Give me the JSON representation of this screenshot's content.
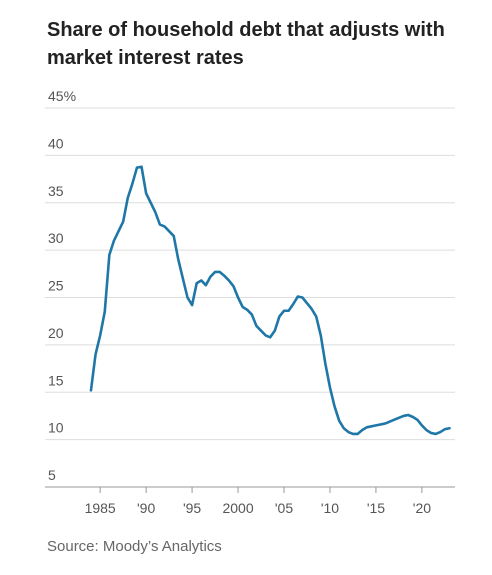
{
  "chart_data": {
    "type": "line",
    "title": "Share of household debt that adjusts with market interest rates",
    "source": "Source: Moody’s Analytics",
    "x": [
      1984,
      1984.5,
      1985,
      1985.5,
      1986,
      1986.5,
      1987,
      1987.5,
      1988,
      1988.5,
      1989,
      1989.5,
      1990,
      1990.5,
      1991,
      1991.5,
      1992,
      1992.5,
      1993,
      1993.5,
      1994,
      1994.5,
      1995,
      1995.5,
      1996,
      1996.5,
      1997,
      1997.5,
      1998,
      1998.5,
      1999,
      1999.5,
      2000,
      2000.5,
      2001,
      2001.5,
      2002,
      2002.5,
      2003,
      2003.5,
      2004,
      2004.5,
      2005,
      2005.5,
      2006,
      2006.5,
      2007,
      2007.5,
      2008,
      2008.5,
      2009,
      2009.5,
      2010,
      2010.5,
      2011,
      2011.5,
      2012,
      2012.5,
      2013,
      2013.5,
      2014,
      2015,
      2016,
      2017,
      2018,
      2018.5,
      2019,
      2019.5,
      2020,
      2020.5,
      2021,
      2021.5,
      2022,
      2022.5,
      2023
    ],
    "series": [
      {
        "name": "Share of household debt",
        "color": "#1f77a8",
        "values": [
          15.2,
          19,
          21,
          23.5,
          29.5,
          31,
          32,
          33,
          35.5,
          37,
          38.7,
          38.8,
          36,
          35,
          34,
          32.7,
          32.5,
          32,
          31.5,
          29,
          27,
          25,
          24.2,
          26.5,
          26.8,
          26.3,
          27.2,
          27.7,
          27.7,
          27.3,
          26.8,
          26.2,
          25,
          24,
          23.7,
          23.2,
          22,
          21.5,
          21,
          20.8,
          21.5,
          23,
          23.6,
          23.6,
          24.3,
          25.1,
          25,
          24.4,
          23.8,
          23,
          21,
          18,
          15.5,
          13.5,
          12,
          11.2,
          10.8,
          10.6,
          10.6,
          11,
          11.3,
          11.5,
          11.7,
          12.1,
          12.5,
          12.6,
          12.4,
          12.1,
          11.5,
          11,
          10.7,
          10.6,
          10.8,
          11.1,
          11.2
        ]
      }
    ],
    "xlim": [
      1979,
      2023.6
    ],
    "xticks": [
      1985,
      {
        "value": 1990,
        "label": "'90"
      },
      {
        "value": 1995,
        "label": "'95"
      },
      2000,
      {
        "value": 2005,
        "label": "'05"
      },
      {
        "value": 2010,
        "label": "'10"
      },
      {
        "value": 2015,
        "label": "'15"
      },
      {
        "value": 2020,
        "label": "'20"
      }
    ],
    "ylim": [
      5,
      45
    ],
    "yticks": [
      5,
      10,
      15,
      20,
      25,
      30,
      35,
      40,
      {
        "value": 45,
        "label": "45%"
      }
    ],
    "grid": true
  }
}
